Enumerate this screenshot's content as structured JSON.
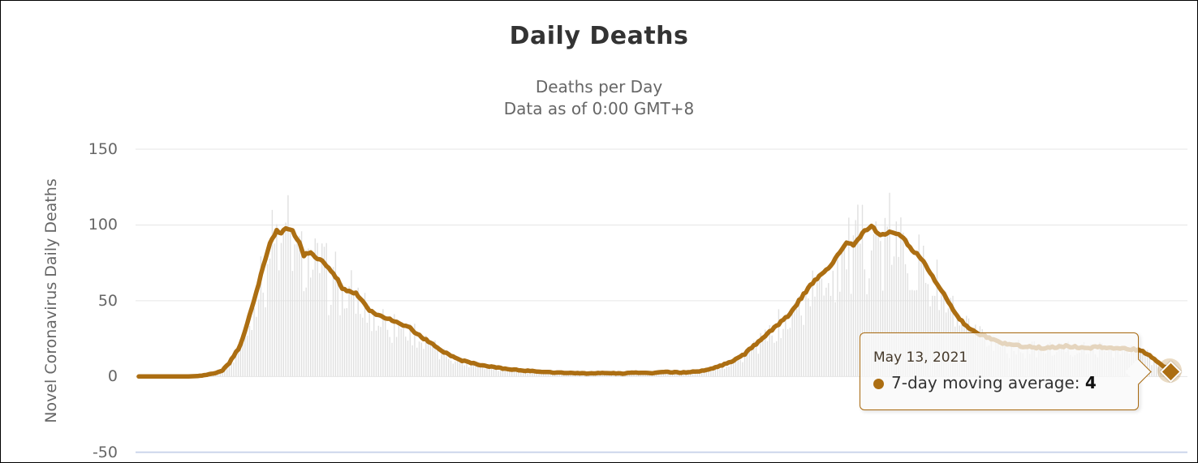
{
  "header": {
    "title": "Daily Deaths",
    "subtitle_line1": "Deaths per Day",
    "subtitle_line2": "Data as of 0:00 GMT+8"
  },
  "y_axis": {
    "title": "Novel Coronavirus Daily Deaths",
    "ticks": [
      150,
      100,
      50,
      0,
      -50
    ],
    "min": -50,
    "max": 150
  },
  "x_axis": {
    "labels_visible": false
  },
  "tooltip": {
    "date": "May 13, 2021",
    "series_label": "7-day moving average:",
    "value": "4"
  },
  "colors": {
    "line": "#AC6E12",
    "bars": "#E0E0E0",
    "grid": "#E6E6E6",
    "bottom_axis_line": "#CCD6EB",
    "labels": "#666666",
    "title": "#333333",
    "tooltip_border": "#A8690F",
    "halo": "rgba(172,110,18,0.25)"
  },
  "chart_data": {
    "type": "line",
    "title": "Daily Deaths",
    "subtitle": [
      "Deaths per Day",
      "Data as of 0:00 GMT+8"
    ],
    "ylabel": "Novel Coronavirus Daily Deaths",
    "ylim": [
      -50,
      150
    ],
    "grid": "horizontal",
    "legend": "none (tooltip shown on last point)",
    "x_range_days": 456,
    "last_point": {
      "date": "May 13, 2021",
      "value": 4
    },
    "series": [
      {
        "name": "7-day moving average",
        "type": "line",
        "color": "#AC6E12",
        "points_day_value": [
          [
            0,
            0
          ],
          [
            10,
            0
          ],
          [
            20,
            0
          ],
          [
            26,
            0.3
          ],
          [
            29,
            1
          ],
          [
            33,
            2
          ],
          [
            37,
            4
          ],
          [
            40,
            9
          ],
          [
            44,
            18
          ],
          [
            47,
            30
          ],
          [
            51,
            50
          ],
          [
            55,
            73
          ],
          [
            58,
            88
          ],
          [
            61,
            96
          ],
          [
            63,
            94
          ],
          [
            65,
            98
          ],
          [
            68,
            96
          ],
          [
            71,
            88
          ],
          [
            73,
            80
          ],
          [
            76,
            82
          ],
          [
            79,
            78
          ],
          [
            82,
            75
          ],
          [
            84,
            72
          ],
          [
            88,
            64
          ],
          [
            90,
            58
          ],
          [
            93,
            56
          ],
          [
            96,
            55
          ],
          [
            99,
            50
          ],
          [
            102,
            44
          ],
          [
            105,
            41
          ],
          [
            108,
            39
          ],
          [
            112,
            37
          ],
          [
            115,
            35
          ],
          [
            118,
            33
          ],
          [
            120,
            32
          ],
          [
            123,
            28
          ],
          [
            126,
            25
          ],
          [
            129,
            22
          ],
          [
            132,
            19
          ],
          [
            135,
            16
          ],
          [
            139,
            13
          ],
          [
            142,
            11
          ],
          [
            146,
            9.5
          ],
          [
            150,
            8
          ],
          [
            154,
            7
          ],
          [
            158,
            6
          ],
          [
            162,
            5
          ],
          [
            166,
            4.5
          ],
          [
            170,
            4
          ],
          [
            175,
            3.5
          ],
          [
            180,
            3
          ],
          [
            186,
            2.5
          ],
          [
            192,
            2.2
          ],
          [
            200,
            2
          ],
          [
            207,
            2.4
          ],
          [
            214,
            2
          ],
          [
            220,
            2.6
          ],
          [
            227,
            2.2
          ],
          [
            233,
            3
          ],
          [
            240,
            2.6
          ],
          [
            246,
            3.2
          ],
          [
            250,
            4
          ],
          [
            254,
            5.5
          ],
          [
            257,
            7
          ],
          [
            261,
            9
          ],
          [
            265,
            12
          ],
          [
            268,
            15
          ],
          [
            270,
            18
          ],
          [
            273,
            21
          ],
          [
            275,
            24
          ],
          [
            278,
            28
          ],
          [
            281,
            32
          ],
          [
            284,
            36
          ],
          [
            287,
            40
          ],
          [
            290,
            45
          ],
          [
            292,
            50
          ],
          [
            295,
            56
          ],
          [
            298,
            62
          ],
          [
            301,
            66
          ],
          [
            304,
            70
          ],
          [
            306,
            73
          ],
          [
            309,
            80
          ],
          [
            312,
            86
          ],
          [
            313,
            89
          ],
          [
            316,
            87
          ],
          [
            318,
            90
          ],
          [
            320,
            95
          ],
          [
            322,
            97
          ],
          [
            324,
            99
          ],
          [
            326,
            96
          ],
          [
            328,
            93
          ],
          [
            331,
            95
          ],
          [
            334,
            95
          ],
          [
            337,
            93
          ],
          [
            339,
            90
          ],
          [
            341,
            85
          ],
          [
            343,
            82
          ],
          [
            345,
            80
          ],
          [
            347,
            76
          ],
          [
            349,
            71
          ],
          [
            351,
            66
          ],
          [
            353,
            61
          ],
          [
            355,
            57
          ],
          [
            357,
            52
          ],
          [
            359,
            47
          ],
          [
            361,
            42
          ],
          [
            363,
            38
          ],
          [
            365,
            35
          ],
          [
            367,
            32
          ],
          [
            369,
            30
          ],
          [
            372,
            28
          ],
          [
            375,
            26
          ],
          [
            378,
            24
          ],
          [
            381,
            22
          ],
          [
            385,
            21
          ],
          [
            390,
            20
          ],
          [
            395,
            19.5
          ],
          [
            400,
            19
          ],
          [
            405,
            19.5
          ],
          [
            410,
            20
          ],
          [
            415,
            19.5
          ],
          [
            420,
            19
          ],
          [
            425,
            19.5
          ],
          [
            430,
            19
          ],
          [
            435,
            18.5
          ],
          [
            440,
            18
          ],
          [
            443,
            17
          ],
          [
            446,
            15
          ],
          [
            449,
            12
          ],
          [
            451,
            9
          ],
          [
            453,
            7
          ],
          [
            455,
            5
          ],
          [
            456,
            4
          ]
        ]
      },
      {
        "name": "daily deaths (bars, estimated from chart)",
        "type": "bar",
        "color": "#E0E0E0",
        "derivation": "moving-average value x daily noise factor 0.65-1.2 (read as thin gray bars)",
        "noise_min_factor": 0.65,
        "noise_span": 0.55,
        "peak_first_wave": 115,
        "peak_second_wave": 123
      }
    ]
  }
}
